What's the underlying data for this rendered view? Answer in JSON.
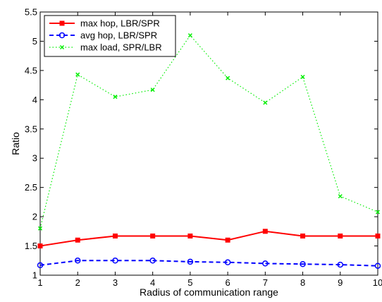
{
  "chart_data": {
    "type": "line",
    "title": "",
    "xlabel": "Radius of communication range",
    "ylabel": "Ratio",
    "xlim": [
      1,
      10
    ],
    "ylim": [
      1,
      5.5
    ],
    "xticks": [
      "1",
      "2",
      "3",
      "4",
      "5",
      "6",
      "7",
      "8",
      "9",
      "10"
    ],
    "yticks": [
      "1",
      "1.5",
      "2",
      "2.5",
      "3",
      "3.5",
      "4",
      "4.5",
      "5",
      "5.5"
    ],
    "grid": false,
    "legend_position": "top-left",
    "x": [
      1,
      2,
      3,
      4,
      5,
      6,
      7,
      8,
      9,
      10
    ],
    "series": [
      {
        "name": "max hop, LBR/SPR",
        "values": [
          1.5,
          1.6,
          1.67,
          1.67,
          1.67,
          1.6,
          1.75,
          1.67,
          1.67,
          1.67
        ],
        "color": "#ff0000",
        "line_style": "solid",
        "marker": "square"
      },
      {
        "name": "avg hop, LBR/SPR",
        "values": [
          1.17,
          1.25,
          1.25,
          1.25,
          1.23,
          1.22,
          1.2,
          1.19,
          1.18,
          1.16
        ],
        "color": "#0000ff",
        "line_style": "dashed",
        "marker": "circle"
      },
      {
        "name": "max load, SPR/LBR",
        "values": [
          1.8,
          4.43,
          4.05,
          4.17,
          5.1,
          4.37,
          3.95,
          4.39,
          2.35,
          2.08
        ],
        "color": "#00ee00",
        "line_style": "dotted",
        "marker": "x"
      }
    ]
  }
}
